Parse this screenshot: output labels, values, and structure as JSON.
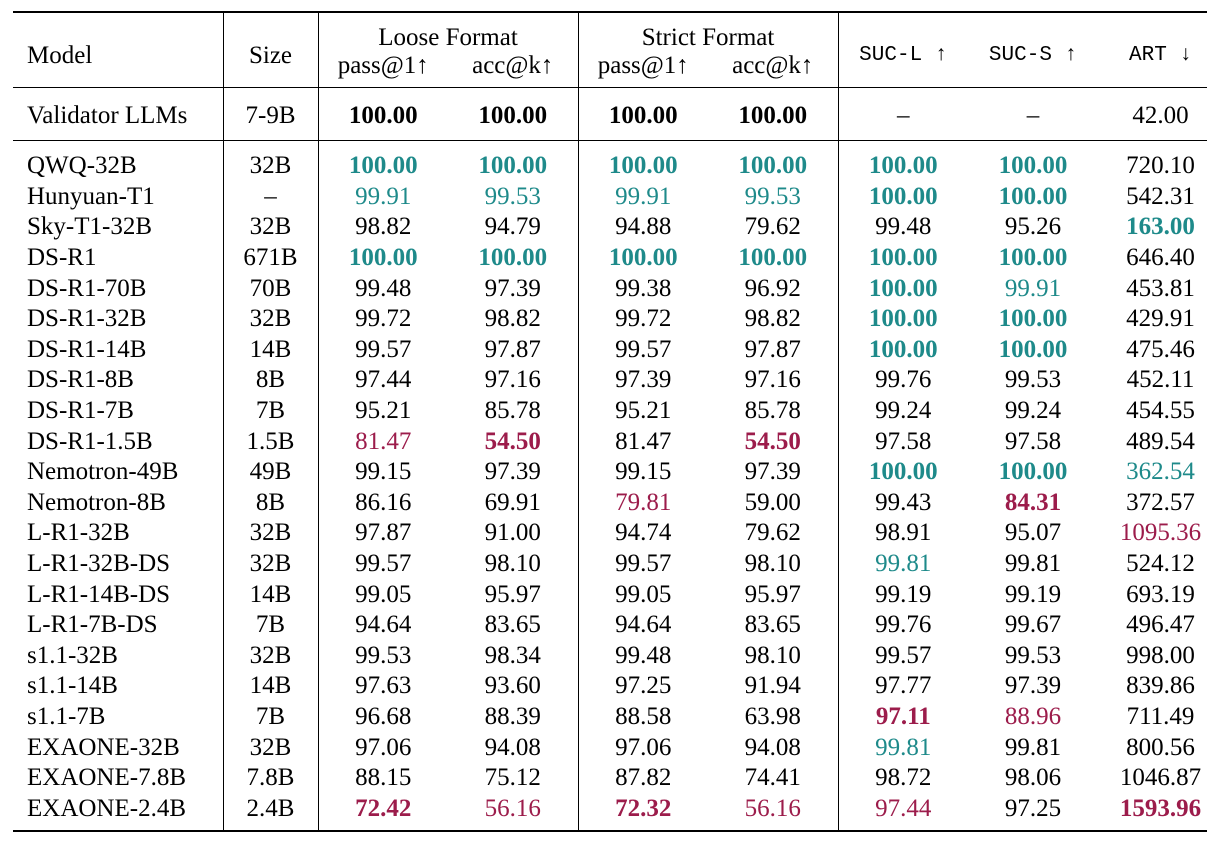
{
  "header": {
    "model": "Model",
    "size": "Size",
    "loose_format": "Loose Format",
    "strict_format": "Strict Format",
    "pass_at_1": "pass@1↑",
    "acc_at_k": "acc@k↑",
    "suc_l": "SUC-L ↑",
    "suc_s": "SUC-S ↑",
    "art": "ART ↓"
  },
  "validator": {
    "model": "Validator LLMs",
    "size": "7-9B",
    "loose_pass": "100.00",
    "loose_acc": "100.00",
    "strict_pass": "100.00",
    "strict_acc": "100.00",
    "suc_l": "–",
    "suc_s": "–",
    "art": "42.00"
  },
  "rows": [
    {
      "model": "QWQ-32B",
      "size": "32B",
      "loose_pass": "100.00",
      "loose_acc": "100.00",
      "strict_pass": "100.00",
      "strict_acc": "100.00",
      "suc_l": "100.00",
      "suc_s": "100.00",
      "art": "720.10"
    },
    {
      "model": "Hunyuan-T1",
      "size": "–",
      "loose_pass": "99.91",
      "loose_acc": "99.53",
      "strict_pass": "99.91",
      "strict_acc": "99.53",
      "suc_l": "100.00",
      "suc_s": "100.00",
      "art": "542.31"
    },
    {
      "model": "Sky-T1-32B",
      "size": "32B",
      "loose_pass": "98.82",
      "loose_acc": "94.79",
      "strict_pass": "94.88",
      "strict_acc": "79.62",
      "suc_l": "99.48",
      "suc_s": "95.26",
      "art": "163.00"
    },
    {
      "model": "DS-R1",
      "size": "671B",
      "loose_pass": "100.00",
      "loose_acc": "100.00",
      "strict_pass": "100.00",
      "strict_acc": "100.00",
      "suc_l": "100.00",
      "suc_s": "100.00",
      "art": "646.40"
    },
    {
      "model": "DS-R1-70B",
      "size": "70B",
      "loose_pass": "99.48",
      "loose_acc": "97.39",
      "strict_pass": "99.38",
      "strict_acc": "96.92",
      "suc_l": "100.00",
      "suc_s": "99.91",
      "art": "453.81"
    },
    {
      "model": "DS-R1-32B",
      "size": "32B",
      "loose_pass": "99.72",
      "loose_acc": "98.82",
      "strict_pass": "99.72",
      "strict_acc": "98.82",
      "suc_l": "100.00",
      "suc_s": "100.00",
      "art": "429.91"
    },
    {
      "model": "DS-R1-14B",
      "size": "14B",
      "loose_pass": "99.57",
      "loose_acc": "97.87",
      "strict_pass": "99.57",
      "strict_acc": "97.87",
      "suc_l": "100.00",
      "suc_s": "100.00",
      "art": "475.46"
    },
    {
      "model": "DS-R1-8B",
      "size": "8B",
      "loose_pass": "97.44",
      "loose_acc": "97.16",
      "strict_pass": "97.39",
      "strict_acc": "97.16",
      "suc_l": "99.76",
      "suc_s": "99.53",
      "art": "452.11"
    },
    {
      "model": "DS-R1-7B",
      "size": "7B",
      "loose_pass": "95.21",
      "loose_acc": "85.78",
      "strict_pass": "95.21",
      "strict_acc": "85.78",
      "suc_l": "99.24",
      "suc_s": "99.24",
      "art": "454.55"
    },
    {
      "model": "DS-R1-1.5B",
      "size": "1.5B",
      "loose_pass": "81.47",
      "loose_acc": "54.50",
      "strict_pass": "81.47",
      "strict_acc": "54.50",
      "suc_l": "97.58",
      "suc_s": "97.58",
      "art": "489.54"
    },
    {
      "model": "Nemotron-49B",
      "size": "49B",
      "loose_pass": "99.15",
      "loose_acc": "97.39",
      "strict_pass": "99.15",
      "strict_acc": "97.39",
      "suc_l": "100.00",
      "suc_s": "100.00",
      "art": "362.54"
    },
    {
      "model": "Nemotron-8B",
      "size": "8B",
      "loose_pass": "86.16",
      "loose_acc": "69.91",
      "strict_pass": "79.81",
      "strict_acc": "59.00",
      "suc_l": "99.43",
      "suc_s": "84.31",
      "art": "372.57"
    },
    {
      "model": "L-R1-32B",
      "size": "32B",
      "loose_pass": "97.87",
      "loose_acc": "91.00",
      "strict_pass": "94.74",
      "strict_acc": "79.62",
      "suc_l": "98.91",
      "suc_s": "95.07",
      "art": "1095.36"
    },
    {
      "model": "L-R1-32B-DS",
      "size": "32B",
      "loose_pass": "99.57",
      "loose_acc": "98.10",
      "strict_pass": "99.57",
      "strict_acc": "98.10",
      "suc_l": "99.81",
      "suc_s": "99.81",
      "art": "524.12"
    },
    {
      "model": "L-R1-14B-DS",
      "size": "14B",
      "loose_pass": "99.05",
      "loose_acc": "95.97",
      "strict_pass": "99.05",
      "strict_acc": "95.97",
      "suc_l": "99.19",
      "suc_s": "99.19",
      "art": "693.19"
    },
    {
      "model": "L-R1-7B-DS",
      "size": "7B",
      "loose_pass": "94.64",
      "loose_acc": "83.65",
      "strict_pass": "94.64",
      "strict_acc": "83.65",
      "suc_l": "99.76",
      "suc_s": "99.67",
      "art": "496.47"
    },
    {
      "model": "s1.1-32B",
      "size": "32B",
      "loose_pass": "99.53",
      "loose_acc": "98.34",
      "strict_pass": "99.48",
      "strict_acc": "98.10",
      "suc_l": "99.57",
      "suc_s": "99.53",
      "art": "998.00"
    },
    {
      "model": "s1.1-14B",
      "size": "14B",
      "loose_pass": "97.63",
      "loose_acc": "93.60",
      "strict_pass": "97.25",
      "strict_acc": "91.94",
      "suc_l": "97.77",
      "suc_s": "97.39",
      "art": "839.86"
    },
    {
      "model": "s1.1-7B",
      "size": "7B",
      "loose_pass": "96.68",
      "loose_acc": "88.39",
      "strict_pass": "88.58",
      "strict_acc": "63.98",
      "suc_l": "97.11",
      "suc_s": "88.96",
      "art": "711.49"
    },
    {
      "model": "EXAONE-32B",
      "size": "32B",
      "loose_pass": "97.06",
      "loose_acc": "94.08",
      "strict_pass": "97.06",
      "strict_acc": "94.08",
      "suc_l": "99.81",
      "suc_s": "99.81",
      "art": "800.56"
    },
    {
      "model": "EXAONE-7.8B",
      "size": "7.8B",
      "loose_pass": "88.15",
      "loose_acc": "75.12",
      "strict_pass": "87.82",
      "strict_acc": "74.41",
      "suc_l": "98.72",
      "suc_s": "98.06",
      "art": "1046.87"
    },
    {
      "model": "EXAONE-2.4B",
      "size": "2.4B",
      "loose_pass": "72.42",
      "loose_acc": "56.16",
      "strict_pass": "72.32",
      "strict_acc": "56.16",
      "suc_l": "97.44",
      "suc_s": "97.25",
      "art": "1593.96"
    }
  ],
  "colors": {
    "best": "#1e8a8a",
    "worst": "#9c1c4b"
  }
}
